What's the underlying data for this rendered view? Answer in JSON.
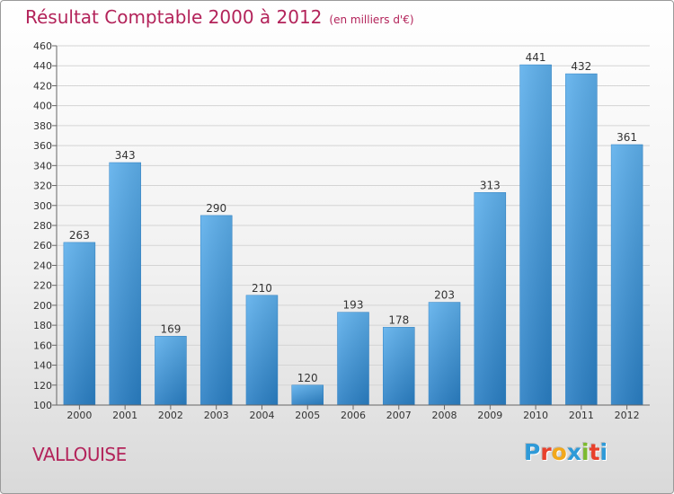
{
  "header": {
    "title": "Résultat Comptable 2000 à 2012",
    "unit": "(en milliers d'€)"
  },
  "commune": "VALLOUISE",
  "logo": {
    "text": "Proxiti",
    "letters": [
      {
        "ch": "P",
        "color": "#2e9ad8"
      },
      {
        "ch": "r",
        "color": "#e8402b"
      },
      {
        "ch": "o",
        "color": "#f2a81c"
      },
      {
        "ch": "x",
        "color": "#2e9ad8"
      },
      {
        "ch": "i",
        "color": "#7cba2f"
      },
      {
        "ch": "t",
        "color": "#e8402b"
      },
      {
        "ch": "i",
        "color": "#2e9ad8"
      }
    ]
  },
  "colors": {
    "title": "#b3235a",
    "bar_light": "#5eb0ec",
    "bar_dark": "#2a7fc4",
    "grid": "#d4d4d4"
  },
  "chart_data": {
    "type": "bar",
    "title": "Résultat Comptable 2000 à 2012",
    "categories": [
      "2000",
      "2001",
      "2002",
      "2003",
      "2004",
      "2005",
      "2006",
      "2007",
      "2008",
      "2009",
      "2010",
      "2011",
      "2012"
    ],
    "values": [
      263,
      343,
      169,
      290,
      210,
      120,
      193,
      178,
      203,
      313,
      441,
      432,
      361
    ],
    "ylim": [
      100,
      460
    ],
    "yticks": [
      100,
      120,
      140,
      160,
      180,
      200,
      220,
      240,
      260,
      280,
      300,
      320,
      340,
      360,
      380,
      400,
      420,
      440,
      460
    ],
    "grid": true,
    "data_labels": true
  }
}
